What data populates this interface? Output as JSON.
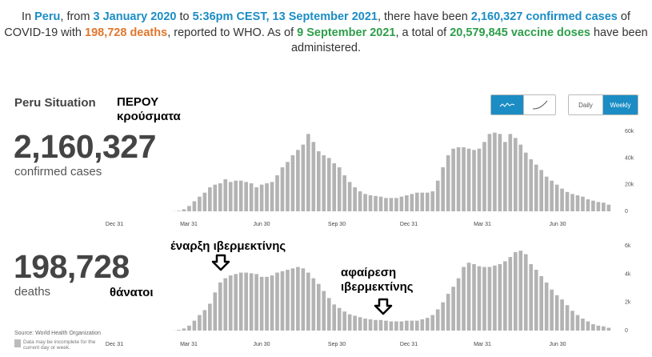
{
  "headline": {
    "p1": "In ",
    "country": "Peru",
    "p2": ", from ",
    "date_from": "3 January 2020",
    "p3": " to ",
    "date_to": "5:36pm CEST, 13 September 2021",
    "p4": ", there have been ",
    "confirmed": "2,160,327 confirmed cases",
    "p5": " of COVID-19 with ",
    "deaths": "198,728 deaths",
    "p6": ", reported to WHO. As of ",
    "vacc_date": "9 September 2021",
    "p7": ", a total of ",
    "doses": "20,579,845 vaccine doses",
    "p8": " have been administered."
  },
  "situation_title": "Peru Situation",
  "annotations": {
    "cases_greek": "ΠΕΡΟΥ κρούσματα",
    "ivermectin_start": "έναρξη ιβερμεκτίνης",
    "ivermectin_remove": "αφαίρεση ιβερμεκτίνης",
    "deaths_greek": "θάνατοι"
  },
  "cases": {
    "total": "2,160,327",
    "label": "confirmed cases"
  },
  "deaths": {
    "total": "198,728",
    "label": "deaths"
  },
  "toggles": {
    "chart_type": [
      {
        "icon": "bar-chart-icon",
        "active": true
      },
      {
        "icon": "line-chart-icon",
        "active": false
      }
    ],
    "period": [
      {
        "label": "Daily",
        "active": false
      },
      {
        "label": "Weekly",
        "active": true
      }
    ]
  },
  "source": "Source: World Health Organization",
  "note": "Data may be incomplete for the current day or week.",
  "colors": {
    "accent": "#1b8dc4",
    "bar": "#b3b3b3",
    "orange": "#e0772e",
    "green": "#2e9e4a"
  },
  "chart_data": [
    {
      "type": "bar",
      "title": "confirmed cases",
      "x_tick_labels": [
        "Dec 31",
        "Mar 31",
        "Jun 30",
        "Sep 30",
        "Dec 31",
        "Mar 31",
        "Jun 30"
      ],
      "y_tick_labels": [
        "0",
        "20k",
        "40k",
        "60k"
      ],
      "ylim": [
        0,
        60000
      ],
      "grid": false,
      "values": [
        0,
        0,
        0,
        0,
        0,
        0,
        0,
        0,
        0,
        0,
        0,
        0,
        100,
        400,
        1500,
        4000,
        7500,
        11000,
        14000,
        18000,
        20000,
        21000,
        24000,
        22000,
        23000,
        23000,
        22000,
        21000,
        18000,
        20000,
        21000,
        22000,
        27000,
        33000,
        37000,
        42000,
        46000,
        50000,
        58000,
        52000,
        45000,
        42000,
        40000,
        36000,
        33000,
        27000,
        22000,
        18000,
        15000,
        13000,
        12000,
        11500,
        11000,
        10000,
        10000,
        10000,
        11000,
        12000,
        13000,
        14000,
        14000,
        14000,
        15000,
        23000,
        33000,
        42000,
        47000,
        48000,
        48000,
        47000,
        46000,
        47000,
        52000,
        58000,
        59000,
        58000,
        52000,
        58000,
        55000,
        50000,
        44000,
        39000,
        35000,
        31000,
        26000,
        23000,
        20000,
        17000,
        14500,
        13000,
        12000,
        11000,
        9000,
        8000,
        7000,
        6500,
        5000
      ]
    },
    {
      "type": "bar",
      "title": "deaths",
      "x_tick_labels": [
        "Dec 31",
        "Mar 31",
        "Jun 30",
        "Sep 30",
        "Dec 31",
        "Mar 31",
        "Jun 30"
      ],
      "y_tick_labels": [
        "0",
        "2k",
        "4k",
        "6k"
      ],
      "ylim": [
        0,
        6000
      ],
      "grid": false,
      "values": [
        0,
        0,
        0,
        0,
        0,
        0,
        0,
        0,
        0,
        0,
        0,
        0,
        10,
        50,
        150,
        350,
        700,
        1100,
        1450,
        1900,
        2700,
        3400,
        3700,
        3900,
        4000,
        4100,
        4100,
        4050,
        4000,
        3800,
        3800,
        3900,
        4100,
        4200,
        4300,
        4400,
        4500,
        4400,
        4100,
        3700,
        3300,
        2800,
        2300,
        1850,
        1600,
        1350,
        1150,
        1050,
        950,
        850,
        800,
        750,
        750,
        700,
        650,
        650,
        650,
        700,
        700,
        700,
        800,
        900,
        1100,
        1500,
        2000,
        2600,
        3100,
        3700,
        4500,
        4800,
        4700,
        4550,
        4500,
        4500,
        4600,
        4700,
        4900,
        5200,
        5550,
        5650,
        5400,
        4700,
        4300,
        3850,
        3400,
        2900,
        2500,
        2200,
        1800,
        1400,
        1100,
        850,
        650,
        450,
        350,
        300,
        200
      ]
    }
  ]
}
